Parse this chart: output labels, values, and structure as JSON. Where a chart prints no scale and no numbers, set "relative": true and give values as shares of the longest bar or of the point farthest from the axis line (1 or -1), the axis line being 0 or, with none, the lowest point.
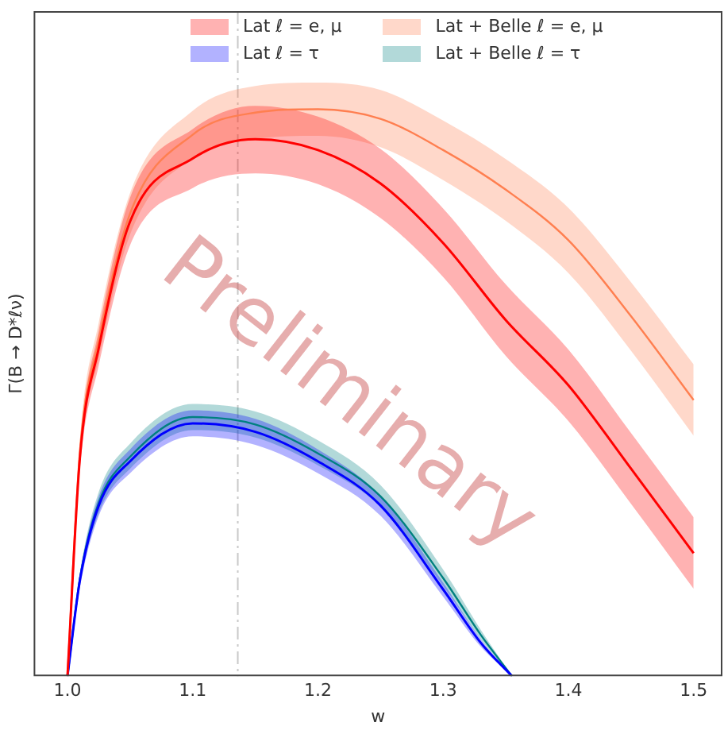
{
  "chart_data": {
    "type": "line",
    "relative": true,
    "xlabel": "w",
    "ylabel": "Γ(B → D*ℓν)",
    "xlim": [
      0.973,
      1.523
    ],
    "xticks": [
      {
        "value": 1,
        "label": "1.0"
      },
      {
        "value": 1.1,
        "label": "1.1"
      },
      {
        "value": 1.2,
        "label": "1.2"
      },
      {
        "value": 1.3,
        "label": "1.3"
      },
      {
        "value": 1.4,
        "label": "1.4"
      },
      {
        "value": 1.5,
        "label": "1.5"
      }
    ],
    "tick_labels": "x",
    "grid": false,
    "legend": "top",
    "marker": "none",
    "ref_lines": [
      {
        "axis": "x",
        "value": 1.136,
        "color": "#c8c8c8"
      }
    ],
    "annotations": [
      "Preliminary"
    ],
    "series": [
      {
        "name": "Lat ℓ = e, μ",
        "color": "#ff0000",
        "x": [
          1.0,
          1.01,
          1.025,
          1.05,
          1.1,
          1.15,
          1.2,
          1.25,
          1.3,
          1.35,
          1.4,
          1.45,
          1.5
        ],
        "values": [
          0,
          0.387,
          0.579,
          0.802,
          0.913,
          0.947,
          0.928,
          0.869,
          0.764,
          0.628,
          0.513,
          0.366,
          0.217
        ],
        "lower": [
          0,
          0.366,
          0.548,
          0.76,
          0.861,
          0.887,
          0.868,
          0.808,
          0.704,
          0.565,
          0.45,
          0.304,
          0.154
        ],
        "upper": [
          0,
          0.408,
          0.61,
          0.844,
          0.965,
          1.006,
          0.987,
          0.93,
          0.825,
          0.691,
          0.576,
          0.429,
          0.28
        ]
      },
      {
        "name": "Lat + Belle ℓ = e, μ",
        "color": "#ff7f50",
        "x": [
          1.0,
          1.01,
          1.025,
          1.05,
          1.1,
          1.15,
          1.2,
          1.25,
          1.3,
          1.35,
          1.4,
          1.45,
          1.5
        ],
        "values": [
          0,
          0.398,
          0.593,
          0.816,
          0.955,
          0.994,
          1,
          0.983,
          0.928,
          0.858,
          0.769,
          0.635,
          0.487
        ],
        "lower": [
          0,
          0.377,
          0.561,
          0.779,
          0.913,
          0.947,
          0.953,
          0.933,
          0.875,
          0.803,
          0.711,
          0.574,
          0.424
        ],
        "upper": [
          0,
          0.419,
          0.624,
          0.852,
          0.997,
          1.041,
          1.047,
          1.034,
          0.98,
          0.912,
          0.826,
          0.695,
          0.55
        ]
      },
      {
        "name": "Lat ℓ = τ",
        "color": "#0000ff",
        "x": [
          1.0,
          1.01,
          1.025,
          1.05,
          1.1,
          1.15,
          1.2,
          1.25,
          1.3,
          1.33,
          1.355
        ],
        "values": [
          0,
          0.17,
          0.301,
          0.379,
          0.446,
          0.431,
          0.379,
          0.301,
          0.153,
          0.059,
          0
        ],
        "lower": [
          0,
          0.157,
          0.283,
          0.358,
          0.423,
          0.408,
          0.358,
          0.283,
          0.14,
          0.052,
          0
        ],
        "upper": [
          0,
          0.18,
          0.317,
          0.4,
          0.469,
          0.454,
          0.4,
          0.318,
          0.165,
          0.065,
          0
        ]
      },
      {
        "name": "Lat + Belle ℓ = τ",
        "color": "#008080",
        "x": [
          1.0,
          1.01,
          1.025,
          1.05,
          1.1,
          1.15,
          1.2,
          1.25,
          1.3,
          1.33,
          1.355
        ],
        "values": [
          0,
          0.173,
          0.306,
          0.387,
          0.457,
          0.444,
          0.393,
          0.317,
          0.173,
          0.073,
          0
        ],
        "lower": [
          0,
          0.162,
          0.288,
          0.366,
          0.434,
          0.421,
          0.372,
          0.299,
          0.159,
          0.065,
          0
        ],
        "upper": [
          0,
          0.183,
          0.325,
          0.41,
          0.48,
          0.467,
          0.416,
          0.337,
          0.188,
          0.082,
          0
        ]
      }
    ]
  }
}
